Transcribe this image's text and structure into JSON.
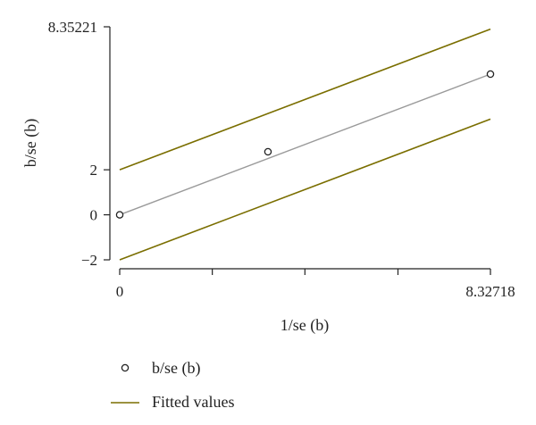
{
  "chart_data": {
    "type": "scatter",
    "title": "",
    "xlabel": "1/se (b)",
    "ylabel": "b/se (b)",
    "xlim": [
      0,
      8.32718
    ],
    "ylim": [
      -2,
      8.35221
    ],
    "x_ticks": [
      {
        "value": 0,
        "label": "0"
      },
      {
        "value": 2.08,
        "label": ""
      },
      {
        "value": 4.16,
        "label": ""
      },
      {
        "value": 6.25,
        "label": ""
      },
      {
        "value": 8.32718,
        "label": "8.32718"
      }
    ],
    "y_ticks": [
      {
        "value": -2,
        "label": "−2"
      },
      {
        "value": 0,
        "label": "0"
      },
      {
        "value": 2,
        "label": "2"
      },
      {
        "value": 8.35221,
        "label": "8.35221"
      }
    ],
    "series": [
      {
        "name": "b/se (b)",
        "kind": "scatter",
        "marker": "hollow-circle",
        "color": "#222222",
        "points": [
          {
            "x": 0,
            "y": 0
          },
          {
            "x": 3.33,
            "y": 2.8
          },
          {
            "x": 8.32718,
            "y": 6.25
          }
        ]
      },
      {
        "name": "Fitted values",
        "kind": "line",
        "color": "#9a9a9a",
        "points": [
          {
            "x": 0,
            "y": 0
          },
          {
            "x": 8.32718,
            "y": 6.25
          }
        ]
      }
    ],
    "confidence_band": {
      "color": "#7a6e00",
      "lines": [
        {
          "points": [
            {
              "x": 0,
              "y": 2
            },
            {
              "x": 8.32718,
              "y": 8.25
            }
          ]
        },
        {
          "points": [
            {
              "x": 0,
              "y": -2
            },
            {
              "x": 8.32718,
              "y": 4.25
            }
          ]
        }
      ]
    },
    "legend": {
      "placement": "bottom",
      "items": [
        {
          "label": "b/se (b)",
          "symbol": "hollow-circle",
          "color": "#222222"
        },
        {
          "label": "Fitted values",
          "symbol": "line",
          "color": "#7a6e00"
        }
      ]
    },
    "grid": false
  }
}
